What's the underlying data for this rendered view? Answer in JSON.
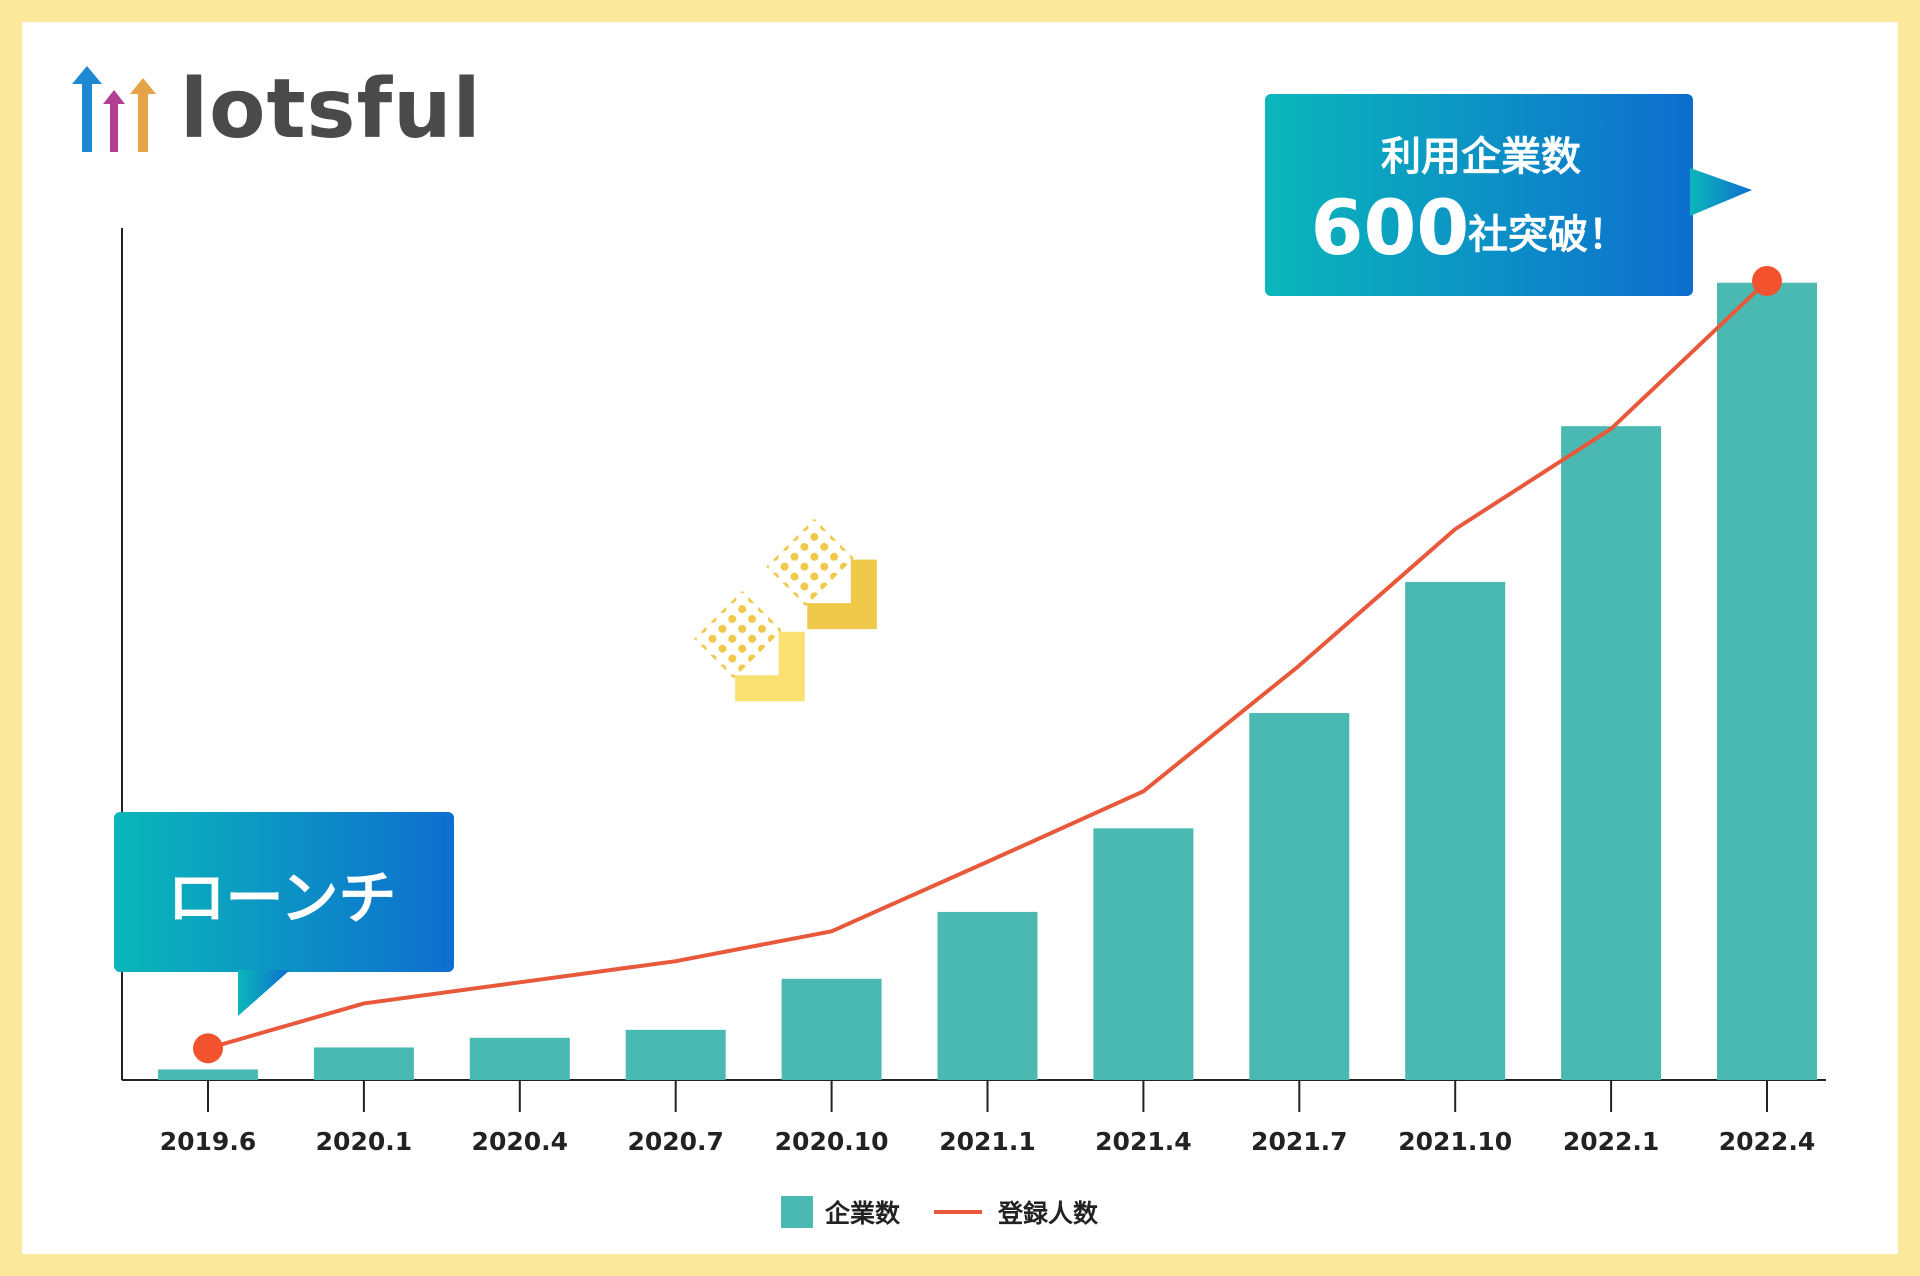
{
  "logo": {
    "text": "lotsful"
  },
  "colors": {
    "background": "#FCE89A",
    "bar": "#49B9B2",
    "line": "#E8583A",
    "marker": "#F2522E",
    "axis": "#222222",
    "callout_start": "#0AB7BA",
    "callout_end": "#0E6ECF",
    "arrow_yellow_light": "#F9E071",
    "arrow_yellow_dark": "#F0C84A"
  },
  "callouts": {
    "launch": "ローンチ",
    "milestone_top": "利用企業数",
    "milestone_number": "600",
    "milestone_suffix": "社突破！"
  },
  "chart_data": {
    "type": "bar",
    "categories": [
      "2019.6",
      "2020.1",
      "2020.4",
      "2020.7",
      "2020.10",
      "2021.1",
      "2021.4",
      "2021.7",
      "2021.10",
      "2022.1",
      "2022.4"
    ],
    "series": [
      {
        "name": "企業数",
        "type": "bar",
        "values": [
          12,
          37,
          48,
          57,
          115,
          191,
          286,
          417,
          566,
          743,
          906
        ]
      },
      {
        "name": "登録人数",
        "type": "line",
        "values": [
          36,
          87,
          111,
          135,
          169,
          248,
          328,
          471,
          626,
          740,
          908
        ]
      }
    ],
    "ylim": [
      0,
      1000
    ],
    "y_ticks_shown": false,
    "grid": false,
    "legend": "bottom-center"
  }
}
